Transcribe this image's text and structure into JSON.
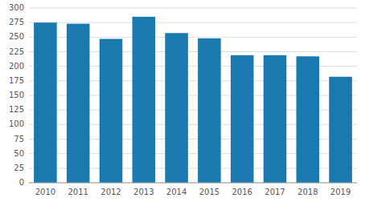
{
  "chart_data": {
    "type": "bar",
    "categories": [
      "2010",
      "2011",
      "2012",
      "2013",
      "2014",
      "2015",
      "2016",
      "2017",
      "2018",
      "2019"
    ],
    "values": [
      275,
      273,
      247,
      285,
      257,
      248,
      219,
      219,
      217,
      182
    ],
    "color": "#1a7ab0",
    "ylim": [
      0,
      300
    ],
    "yticks": [
      0,
      25,
      50,
      75,
      100,
      125,
      150,
      175,
      200,
      225,
      250,
      275,
      300
    ],
    "grid": true
  }
}
